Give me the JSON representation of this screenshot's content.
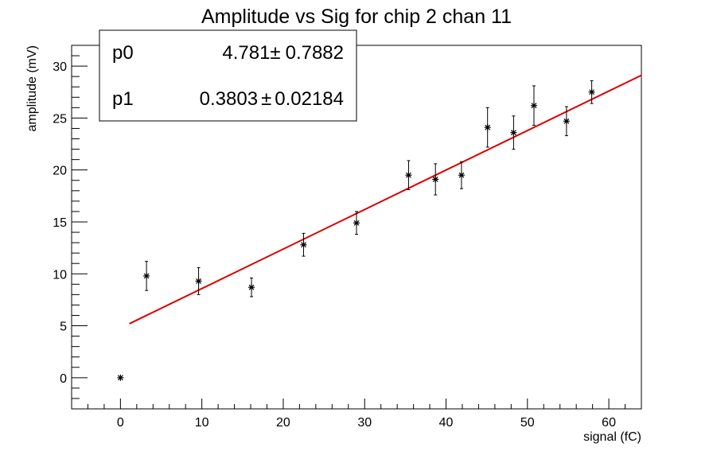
{
  "chart_data": {
    "type": "scatter",
    "title": "Amplitude vs Sig for chip 2 chan 11",
    "xlabel": "signal (fC)",
    "ylabel": "amplitude (mV)",
    "xlim": [
      -6,
      64
    ],
    "ylim": [
      -3,
      32
    ],
    "x_ticks": [
      0,
      10,
      20,
      30,
      40,
      50,
      60
    ],
    "y_ticks": [
      0,
      5,
      10,
      15,
      20,
      25,
      30
    ],
    "grid": false,
    "marker_color": "#000000",
    "fit_color": "#dd0000",
    "points": [
      {
        "x": 0.0,
        "y": 0.0,
        "err": 0.0
      },
      {
        "x": 3.2,
        "y": 9.8,
        "err": 1.4
      },
      {
        "x": 9.6,
        "y": 9.3,
        "err": 1.3
      },
      {
        "x": 16.1,
        "y": 8.7,
        "err": 0.9
      },
      {
        "x": 22.5,
        "y": 12.8,
        "err": 1.1
      },
      {
        "x": 29.0,
        "y": 14.9,
        "err": 1.1
      },
      {
        "x": 35.4,
        "y": 19.5,
        "err": 1.4
      },
      {
        "x": 38.7,
        "y": 19.1,
        "err": 1.5
      },
      {
        "x": 41.9,
        "y": 19.5,
        "err": 1.3
      },
      {
        "x": 45.1,
        "y": 24.1,
        "err": 1.9
      },
      {
        "x": 48.3,
        "y": 23.6,
        "err": 1.6
      },
      {
        "x": 50.8,
        "y": 26.2,
        "err": 1.9
      },
      {
        "x": 54.8,
        "y": 24.7,
        "err": 1.4
      },
      {
        "x": 57.9,
        "y": 27.5,
        "err": 1.1
      }
    ],
    "fit": {
      "x_start": 1.1,
      "x_end": 64,
      "params": [
        {
          "name": "p0",
          "value": "4.781",
          "pm": "±",
          "error": "0.7882",
          "num": 4.781
        },
        {
          "name": "p1",
          "value": "0.3803",
          "pm": "±",
          "error": "0.02184",
          "num": 0.3803
        }
      ]
    }
  }
}
